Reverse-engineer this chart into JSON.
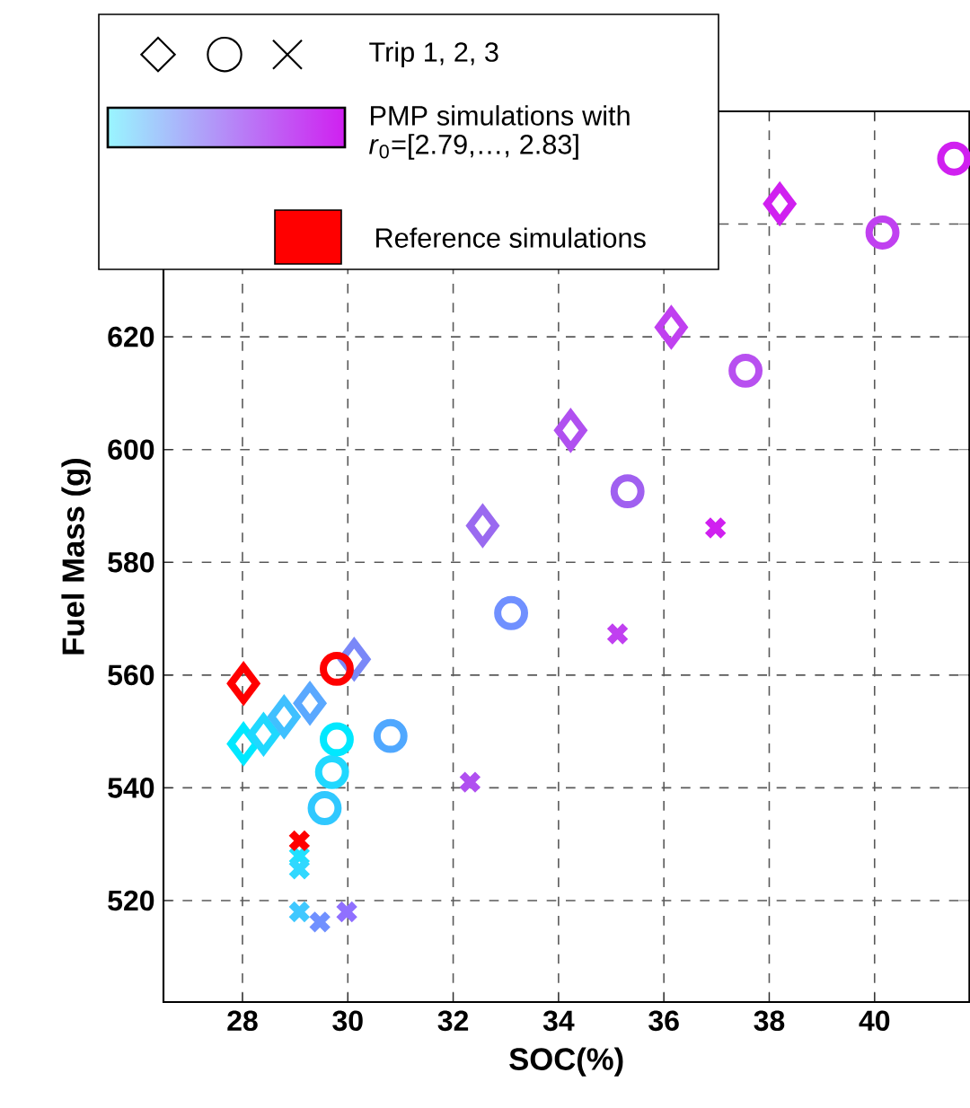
{
  "chart_data": {
    "type": "scatter",
    "xlabel": "SOC(%)",
    "ylabel": "Fuel Mass (g)",
    "xlim": [
      26.5,
      41.8
    ],
    "ylim": [
      502,
      660
    ],
    "xticks": [
      28,
      30,
      32,
      34,
      36,
      38,
      40
    ],
    "yticks": [
      520,
      540,
      560,
      580,
      600,
      620,
      {
        "value": 640,
        "label": null
      }
    ],
    "grid": true,
    "annotations": [
      "Trip 1, 2, 3",
      "PMP simulations with *r*$_{0}$=[2.79,…, 2.83]",
      "Reference simulations"
    ],
    "series": [
      {
        "marker": "diamond",
        "x": [
          28.02,
          28.4,
          28.79,
          29.28,
          30.12,
          32.56,
          34.23,
          36.14,
          38.2
        ],
        "values": [
          547.8,
          549.5,
          552.6,
          555.0,
          562.8,
          586.5,
          603.4,
          621.7,
          643.6
        ],
        "colors": [
          "#00e8ff",
          "#20d8ff",
          "#40c0ff",
          "#5aa8ff",
          "#7a88f8",
          "#9a6af0",
          "#b050f0",
          "#c040f0",
          "#d020f0"
        ]
      },
      {
        "marker": "circle",
        "x": [
          29.56,
          29.7,
          29.79,
          30.81,
          33.1,
          35.31,
          37.55,
          40.15,
          41.51
        ],
        "values": [
          536.4,
          542.8,
          548.6,
          549.2,
          571.0,
          592.6,
          614.0,
          638.5,
          651.6
        ],
        "colors": [
          "#30c8ff",
          "#20d8ff",
          "#00e8ff",
          "#50a8ff",
          "#7090ff",
          "#a060f0",
          "#b850f0",
          "#c040f0",
          "#d020f0"
        ]
      },
      {
        "marker": "cross",
        "x": [
          29.08,
          29.08,
          29.08,
          29.47,
          29.98,
          32.32,
          35.12,
          36.98
        ],
        "values": [
          527.9,
          525.6,
          518.0,
          516.2,
          518.0,
          541.0,
          567.3,
          586.1
        ],
        "colors": [
          "#20e0ff",
          "#30d8ff",
          "#40c8ff",
          "#7090ff",
          "#9070ff",
          "#b050f0",
          "#c040f0",
          "#d020f0"
        ]
      },
      {
        "marker": "diamond",
        "x": [
          28.02
        ],
        "values": [
          558.5
        ],
        "color": "#ff0000"
      },
      {
        "marker": "circle",
        "x": [
          29.79
        ],
        "values": [
          561.1
        ],
        "color": "#ff0000"
      },
      {
        "marker": "cross",
        "x": [
          29.08
        ],
        "values": [
          530.6
        ],
        "color": "#ff0000"
      }
    ]
  }
}
